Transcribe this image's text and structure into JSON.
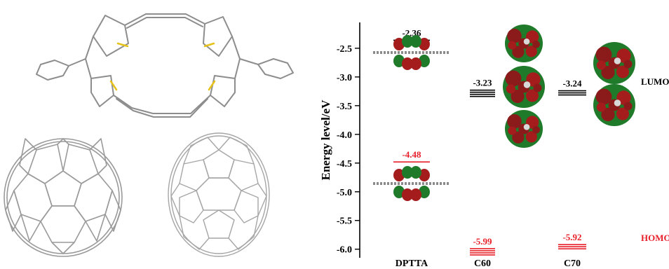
{
  "chart_data": {
    "type": "energy-level diagram",
    "ylabel": "Energy level/eV",
    "ylim": [
      -6.15,
      -2.05
    ],
    "y_ticks": [
      -2.5,
      -3.0,
      -3.5,
      -4.0,
      -4.5,
      -5.0,
      -5.5,
      -6.0
    ],
    "y_tick_labels": [
      "-2.5",
      "-3.0",
      "-3.5",
      "-4.0",
      "-4.5",
      "-5.0",
      "-5.5",
      "-6.0"
    ],
    "categories": [
      "DPTTA",
      "C60",
      "C70"
    ],
    "lumo": {
      "values": [
        -2.36,
        -3.23,
        -3.24
      ],
      "labels": [
        "-2.36",
        "-3.23",
        "-3.24"
      ],
      "color": "#000000"
    },
    "homo": {
      "values": [
        -4.48,
        -5.99,
        -5.92
      ],
      "labels": [
        "-4.48",
        "-5.99",
        "-5.92"
      ],
      "color": "#e8202a"
    },
    "level_text": {
      "lumo": "LUMO",
      "homo": "HOMO"
    },
    "orbital_colors": {
      "positive": "#a51c1c",
      "negative": "#1f7a2a"
    }
  }
}
